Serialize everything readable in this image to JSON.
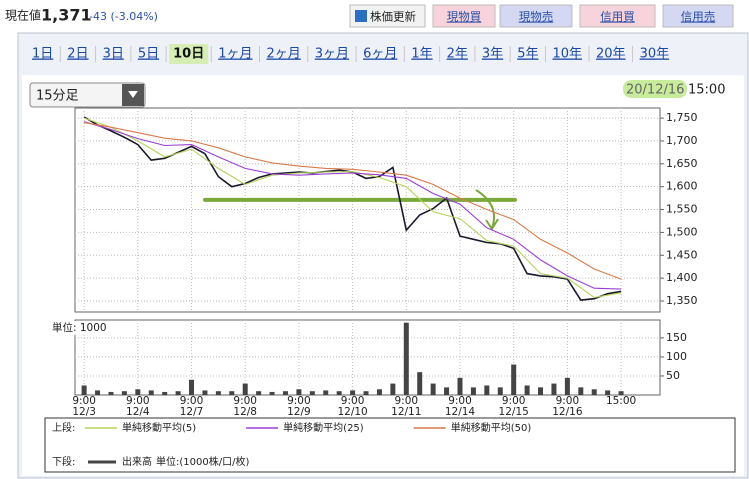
{
  "header": {
    "price_label": "現在値",
    "price": "1,371",
    "change": "-43 (-3.04%)",
    "buttons": [
      "株価更新",
      "現物買",
      "現物売",
      "信用買",
      "信用売"
    ]
  },
  "tabs": {
    "items": [
      "1日",
      "2日",
      "3日",
      "5日",
      "10日",
      "1ヶ月",
      "2ヶ月",
      "3ヶ月",
      "6ヶ月",
      "1年",
      "2年",
      "3年",
      "5年",
      "10年",
      "20年",
      "30年"
    ],
    "selected": 4
  },
  "controls": {
    "interval": "15分足",
    "date": "20/12/16",
    "time": "15:00"
  },
  "chart_data": [
    {
      "type": "line",
      "xlim": [
        -3.4,
        214.5
      ],
      "ylim": [
        1326,
        1772
      ],
      "yticks": [
        {
          "value": 1750,
          "label": "1,750"
        },
        {
          "value": 1700,
          "label": "1,700"
        },
        {
          "value": 1650,
          "label": "1,650"
        },
        {
          "value": 1600,
          "label": "1,600"
        },
        {
          "value": 1550,
          "label": "1,550"
        },
        {
          "value": 1500,
          "label": "1,500"
        },
        {
          "value": 1450,
          "label": "1,450"
        },
        {
          "value": 1400,
          "label": "1,400"
        },
        {
          "value": 1350,
          "label": "1,350"
        }
      ],
      "grid": true,
      "reference_line": {
        "value": 1571,
        "color": "#7aa83a"
      },
      "series": [
        {
          "color": "#1a1a2e",
          "x": [
            0,
            5,
            10,
            15,
            20,
            25,
            30,
            35,
            40,
            45,
            50,
            55,
            60,
            65,
            70,
            75,
            80,
            85,
            90,
            95,
            100,
            105,
            110,
            115,
            120,
            125,
            130,
            135,
            140,
            145,
            150,
            155,
            160,
            165,
            170,
            175,
            180,
            185,
            190,
            195,
            200
          ],
          "values": [
            1752,
            1735,
            1722,
            1708,
            1692,
            1658,
            1662,
            1675,
            1688,
            1672,
            1622,
            1600,
            1607,
            1620,
            1628,
            1630,
            1632,
            1630,
            1633,
            1636,
            1632,
            1618,
            1622,
            1642,
            1505,
            1538,
            1552,
            1575,
            1492,
            1485,
            1478,
            1475,
            1465,
            1410,
            1405,
            1403,
            1398,
            1352,
            1355,
            1366,
            1371
          ]
        },
        {
          "name": "単純移動平均(5)",
          "color": "#b5d35a",
          "x": [
            0,
            10,
            20,
            30,
            40,
            50,
            60,
            70,
            80,
            90,
            100,
            110,
            120,
            130,
            140,
            150,
            160,
            170,
            180,
            190,
            200
          ],
          "values": [
            1750,
            1730,
            1700,
            1665,
            1682,
            1640,
            1605,
            1625,
            1630,
            1632,
            1633,
            1620,
            1600,
            1545,
            1530,
            1482,
            1470,
            1410,
            1400,
            1358,
            1368
          ]
        },
        {
          "name": "単純移動平均(25)",
          "color": "#9b3fd6",
          "x": [
            0,
            10,
            20,
            30,
            40,
            50,
            60,
            70,
            80,
            90,
            100,
            110,
            120,
            130,
            140,
            150,
            160,
            170,
            180,
            190,
            200
          ],
          "values": [
            1742,
            1725,
            1705,
            1690,
            1692,
            1665,
            1640,
            1628,
            1625,
            1628,
            1630,
            1626,
            1618,
            1585,
            1562,
            1510,
            1485,
            1440,
            1405,
            1378,
            1376
          ]
        },
        {
          "name": "単純移動平均(50)",
          "color": "#d9794a",
          "x": [
            0,
            10,
            20,
            30,
            40,
            50,
            60,
            70,
            80,
            90,
            100,
            110,
            120,
            130,
            140,
            150,
            160,
            170,
            180,
            190,
            200
          ],
          "values": [
            1740,
            1730,
            1718,
            1706,
            1700,
            1685,
            1665,
            1652,
            1645,
            1640,
            1638,
            1632,
            1625,
            1605,
            1575,
            1550,
            1528,
            1485,
            1455,
            1420,
            1398
          ]
        }
      ]
    },
    {
      "type": "bar",
      "unit_label": "単位: 1000",
      "xlim": [
        -3.4,
        214.5
      ],
      "ylim": [
        0,
        197
      ],
      "yticks": [
        150,
        100,
        50
      ],
      "grid": true,
      "xticks": [
        {
          "value": 0,
          "label": "9:00"
        },
        {
          "value": 20,
          "label": "9:00"
        },
        {
          "value": 40,
          "label": "9:00"
        },
        {
          "value": 60,
          "label": "9:00"
        },
        {
          "value": 80,
          "label": "9:00"
        },
        {
          "value": 100,
          "label": "9:00"
        },
        {
          "value": 120,
          "label": "9:00"
        },
        {
          "value": 140,
          "label": "9:00"
        },
        {
          "value": 160,
          "label": "9:00"
        },
        {
          "value": 180,
          "label": "9:00"
        },
        {
          "value": 200,
          "label": "15:00"
        }
      ],
      "xtick_dates": [
        "12/3",
        "12/4",
        "12/7",
        "12/8",
        "12/9",
        "12/10",
        "12/11",
        "12/14",
        "12/15",
        "12/16",
        null
      ],
      "series": [
        {
          "name": "出来高",
          "color": "#444444",
          "x": [
            0,
            5,
            10,
            15,
            20,
            25,
            30,
            35,
            40,
            45,
            50,
            55,
            60,
            65,
            70,
            75,
            80,
            85,
            90,
            95,
            100,
            105,
            110,
            115,
            120,
            125,
            130,
            135,
            140,
            145,
            150,
            155,
            160,
            165,
            170,
            175,
            180,
            185,
            190,
            195,
            200
          ],
          "values": [
            25,
            12,
            8,
            10,
            15,
            12,
            8,
            10,
            40,
            12,
            10,
            10,
            30,
            10,
            8,
            10,
            15,
            10,
            12,
            10,
            12,
            10,
            15,
            30,
            190,
            60,
            30,
            20,
            45,
            20,
            25,
            20,
            80,
            25,
            20,
            30,
            45,
            20,
            15,
            12,
            10
          ]
        }
      ]
    }
  ],
  "legend": {
    "upper_label": "上段:",
    "lower_label": "下段:",
    "lower_text": "単位:(1000株/口/枚)"
  }
}
